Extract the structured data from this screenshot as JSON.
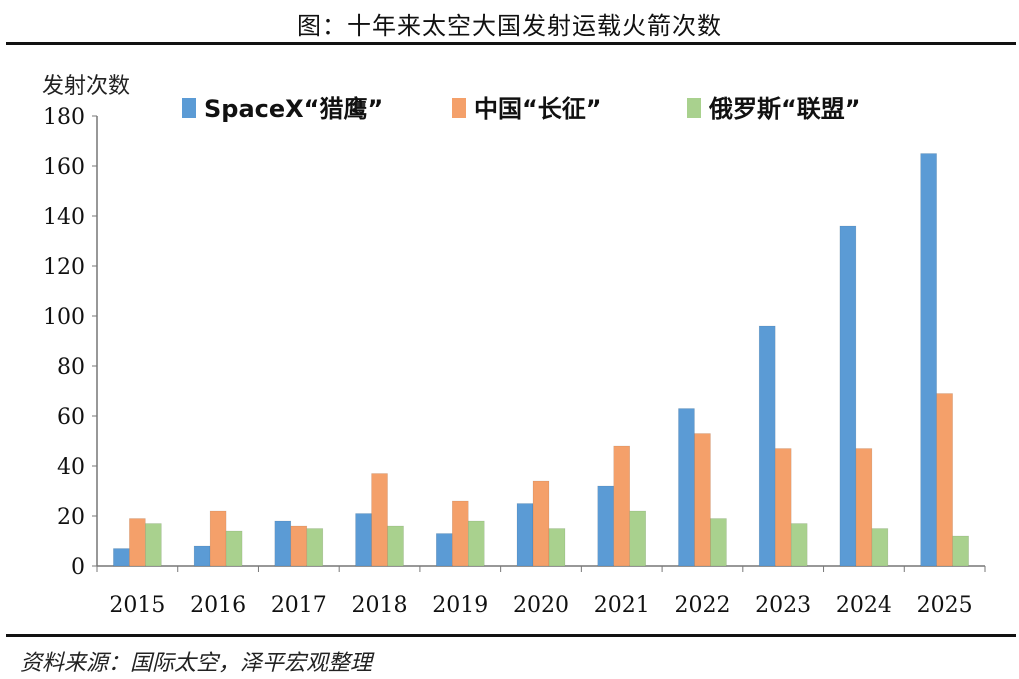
{
  "title": "图：十年来太空大国发射运载火箭次数",
  "source": "资料来源：国际太空，泽平宏观整理",
  "chart_data": {
    "type": "bar",
    "ylabel": "发射次数",
    "xlabel": "",
    "ylim": [
      0,
      180
    ],
    "yticks": [
      0,
      20,
      40,
      60,
      80,
      100,
      120,
      140,
      160,
      180
    ],
    "categories": [
      "2015",
      "2016",
      "2017",
      "2018",
      "2019",
      "2020",
      "2021",
      "2022",
      "2023",
      "2024",
      "2025"
    ],
    "legend_position": "top",
    "series": [
      {
        "name": "SpaceX“猎鹰”",
        "color": "#5b9bd5",
        "values": [
          7,
          8,
          18,
          21,
          13,
          25,
          32,
          63,
          96,
          136,
          165
        ]
      },
      {
        "name": "中国“长征”",
        "color": "#f4a06a",
        "values": [
          19,
          22,
          16,
          37,
          26,
          34,
          48,
          53,
          47,
          47,
          69
        ]
      },
      {
        "name": "俄罗斯“联盟”",
        "color": "#a9d18e",
        "values": [
          17,
          14,
          15,
          16,
          18,
          15,
          22,
          19,
          17,
          15,
          12
        ]
      }
    ]
  }
}
